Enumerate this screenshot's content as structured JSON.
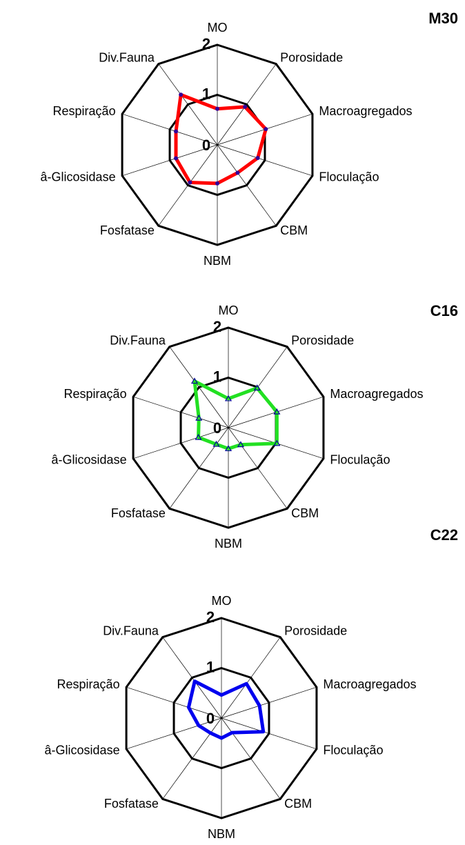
{
  "chart_data": [
    {
      "type": "radar",
      "title": "M30",
      "categories": [
        "MO",
        "Porosidade",
        "Macroagregados",
        "Floculação",
        "CBM",
        "NBM",
        "Fosfatase",
        "â-Glicosidase",
        "Respiração",
        "Div.Fauna"
      ],
      "series": [
        {
          "color": "#ff0000",
          "marker": "circle",
          "marker_color": "#330099",
          "values": [
            0.72,
            0.94,
            1.02,
            0.85,
            0.69,
            0.77,
            0.93,
            0.87,
            0.87,
            1.24
          ]
        }
      ],
      "ylim": [
        0,
        2
      ],
      "yticks": [
        0,
        1,
        2
      ]
    },
    {
      "type": "radar",
      "title": "C16",
      "categories": [
        "MO",
        "Porosidade",
        "Macroagregados",
        "Floculação",
        "CBM",
        "NBM",
        "Fosfatase",
        "â-Glicosidase",
        "Respiração",
        "Div.Fauna"
      ],
      "series": [
        {
          "color": "#22e022",
          "marker": "triangle",
          "marker_color": "#000099",
          "values": [
            0.58,
            0.98,
            1.02,
            1.02,
            0.42,
            0.42,
            0.41,
            0.63,
            0.62,
            1.15
          ]
        }
      ],
      "ylim": [
        0,
        2
      ],
      "yticks": [
        0,
        1,
        2
      ]
    },
    {
      "type": "radar",
      "title": "C22",
      "categories": [
        "MO",
        "Porosidade",
        "Macroagregados",
        "Floculação",
        "CBM",
        "NBM",
        "Fosfatase",
        "â-Glicosidase",
        "Respiração",
        "Div.Fauna"
      ],
      "series": [
        {
          "color": "#0000ee",
          "marker": "none",
          "values": [
            0.46,
            0.85,
            0.8,
            0.88,
            0.36,
            0.4,
            0.37,
            0.48,
            0.69,
            0.91
          ]
        }
      ],
      "ylim": [
        0,
        2
      ],
      "yticks": [
        0,
        1,
        2
      ]
    }
  ]
}
